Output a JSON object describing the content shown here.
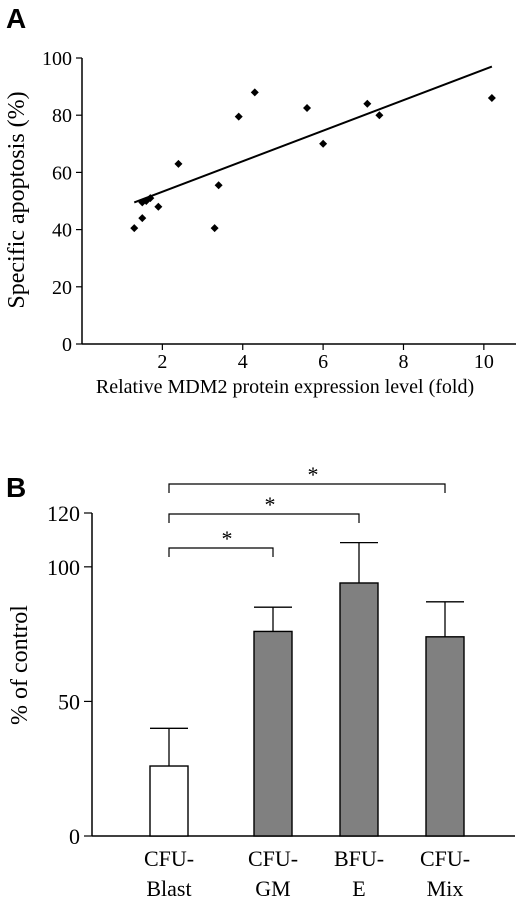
{
  "chart_data": [
    {
      "type": "scatter",
      "panel_label": "A",
      "xlabel": "Relative MDM2 protein expression level (fold)",
      "ylabel": "Specific apoptosis (%)",
      "xlim": [
        0,
        10.8
      ],
      "ylim": [
        0,
        100
      ],
      "x_ticks": [
        2,
        4,
        6,
        8,
        10
      ],
      "y_ticks": [
        0,
        20,
        40,
        60,
        80,
        100
      ],
      "points": [
        {
          "x": 1.3,
          "y": 40.5
        },
        {
          "x": 1.5,
          "y": 44
        },
        {
          "x": 1.5,
          "y": 49.5
        },
        {
          "x": 1.6,
          "y": 50
        },
        {
          "x": 1.7,
          "y": 51
        },
        {
          "x": 1.9,
          "y": 48
        },
        {
          "x": 2.4,
          "y": 63
        },
        {
          "x": 3.3,
          "y": 40.5
        },
        {
          "x": 3.4,
          "y": 55.5
        },
        {
          "x": 3.9,
          "y": 79.5
        },
        {
          "x": 4.3,
          "y": 88
        },
        {
          "x": 5.6,
          "y": 82.5
        },
        {
          "x": 6.0,
          "y": 70
        },
        {
          "x": 7.1,
          "y": 84
        },
        {
          "x": 7.4,
          "y": 80
        },
        {
          "x": 10.2,
          "y": 86
        }
      ],
      "trendline": {
        "x": [
          1.3,
          10.2
        ],
        "y": [
          49.5,
          97
        ]
      }
    },
    {
      "type": "bar",
      "panel_label": "B",
      "ylabel": "% of control",
      "ylim": [
        0,
        120
      ],
      "y_ticks": [
        0,
        50,
        100,
        120
      ],
      "categories": [
        {
          "line1": "CFU-",
          "line2": "Blast"
        },
        {
          "line1": "CFU-",
          "line2": "GM"
        },
        {
          "line1": "BFU-",
          "line2": "E"
        },
        {
          "line1": "CFU-",
          "line2": "Mix"
        }
      ],
      "values": [
        26,
        76,
        94,
        74
      ],
      "errors": [
        14,
        9,
        15,
        13
      ],
      "bar_colors": [
        "#ffffff",
        "#808080",
        "#808080",
        "#808080"
      ],
      "significance": [
        {
          "from": 0,
          "to": 1,
          "label": "*"
        },
        {
          "from": 0,
          "to": 2,
          "label": "*"
        },
        {
          "from": 0,
          "to": 3,
          "label": "*"
        }
      ]
    }
  ]
}
